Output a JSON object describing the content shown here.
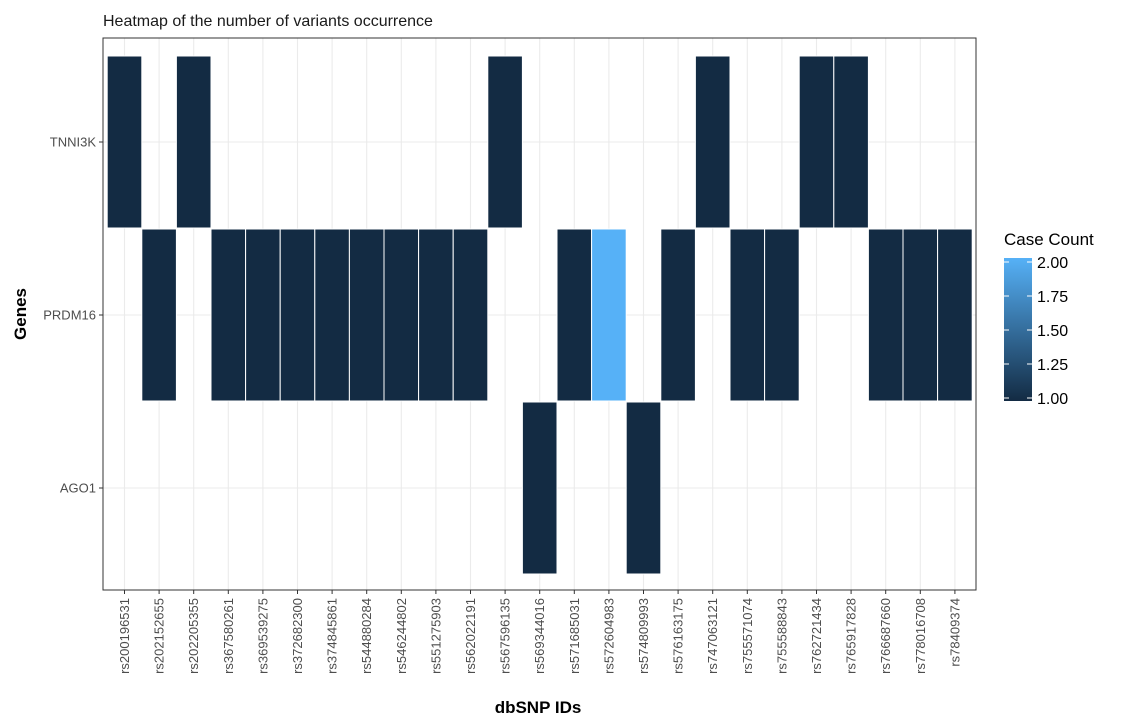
{
  "chart_data": {
    "type": "heatmap",
    "title": "Heatmap of the number of variants occurrence",
    "xlabel": "dbSNP IDs",
    "ylabel": "Genes",
    "x_categories": [
      "rs200196531",
      "rs202152655",
      "rs202205355",
      "rs367580261",
      "rs369539275",
      "rs372682300",
      "rs374845861",
      "rs544880284",
      "rs546244802",
      "rs551275903",
      "rs562022191",
      "rs567596135",
      "rs569344016",
      "rs571685031",
      "rs572604983",
      "rs574809993",
      "rs576163175",
      "rs747063121",
      "rs755571074",
      "rs755588843",
      "rs762721434",
      "rs765917828",
      "rs766687660",
      "rs778016708",
      "rs78409374"
    ],
    "y_categories": [
      "TNNI3K",
      "PRDM16",
      "AGO1"
    ],
    "cells": [
      {
        "x": "rs200196531",
        "y": "TNNI3K",
        "value": 1
      },
      {
        "x": "rs202205355",
        "y": "TNNI3K",
        "value": 1
      },
      {
        "x": "rs567596135",
        "y": "TNNI3K",
        "value": 1
      },
      {
        "x": "rs747063121",
        "y": "TNNI3K",
        "value": 1
      },
      {
        "x": "rs762721434",
        "y": "TNNI3K",
        "value": 1
      },
      {
        "x": "rs765917828",
        "y": "TNNI3K",
        "value": 1
      },
      {
        "x": "rs202152655",
        "y": "PRDM16",
        "value": 1
      },
      {
        "x": "rs367580261",
        "y": "PRDM16",
        "value": 1
      },
      {
        "x": "rs369539275",
        "y": "PRDM16",
        "value": 1
      },
      {
        "x": "rs372682300",
        "y": "PRDM16",
        "value": 1
      },
      {
        "x": "rs374845861",
        "y": "PRDM16",
        "value": 1
      },
      {
        "x": "rs544880284",
        "y": "PRDM16",
        "value": 1
      },
      {
        "x": "rs546244802",
        "y": "PRDM16",
        "value": 1
      },
      {
        "x": "rs551275903",
        "y": "PRDM16",
        "value": 1
      },
      {
        "x": "rs562022191",
        "y": "PRDM16",
        "value": 1
      },
      {
        "x": "rs571685031",
        "y": "PRDM16",
        "value": 1
      },
      {
        "x": "rs572604983",
        "y": "PRDM16",
        "value": 2
      },
      {
        "x": "rs576163175",
        "y": "PRDM16",
        "value": 1
      },
      {
        "x": "rs755571074",
        "y": "PRDM16",
        "value": 1
      },
      {
        "x": "rs755588843",
        "y": "PRDM16",
        "value": 1
      },
      {
        "x": "rs766687660",
        "y": "PRDM16",
        "value": 1
      },
      {
        "x": "rs778016708",
        "y": "PRDM16",
        "value": 1
      },
      {
        "x": "rs78409374",
        "y": "PRDM16",
        "value": 1
      },
      {
        "x": "rs569344016",
        "y": "AGO1",
        "value": 1
      },
      {
        "x": "rs574809993",
        "y": "AGO1",
        "value": 1
      }
    ],
    "legend": {
      "title": "Case Count",
      "ticks": [
        "1.00",
        "1.25",
        "1.50",
        "1.75",
        "2.00"
      ],
      "range": [
        1,
        2
      ],
      "placement": "right"
    },
    "colors": {
      "low": "#132B43",
      "high": "#56B1F7",
      "grid": "#ebebeb",
      "border": "#333333"
    },
    "grid": true
  }
}
